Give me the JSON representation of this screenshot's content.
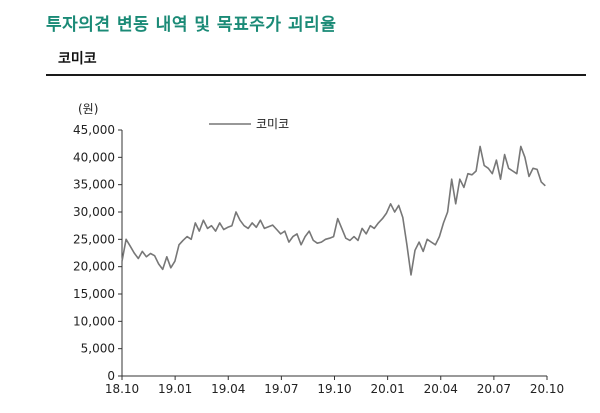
{
  "header": {
    "report_title": "투자의견 변동 내역 및 목표주가 괴리율",
    "chart_title": "코미코"
  },
  "colors": {
    "title_green": "#1a8a76",
    "series_line": "#777777"
  },
  "chart_data": {
    "type": "line",
    "ylabel": "(원)",
    "ylim": [
      0,
      45000
    ],
    "yticks": [
      0,
      5000,
      10000,
      15000,
      20000,
      25000,
      30000,
      35000,
      40000,
      45000
    ],
    "ytick_labels": [
      "0",
      "5,000",
      "10,000",
      "15,000",
      "20,000",
      "25,000",
      "30,000",
      "35,000",
      "40,000",
      "45,000"
    ],
    "xticks": [
      "18.10",
      "19.01",
      "19.04",
      "19.07",
      "19.10",
      "20.01",
      "20.04",
      "20.07",
      "20.10"
    ],
    "grid": false,
    "legend_position": "top-center",
    "series": [
      {
        "name": "코미코",
        "x": [
          "2018-10-01",
          "2018-10-08",
          "2018-10-15",
          "2018-10-22",
          "2018-10-29",
          "2018-11-05",
          "2018-11-12",
          "2018-11-19",
          "2018-11-26",
          "2018-12-03",
          "2018-12-10",
          "2018-12-17",
          "2018-12-24",
          "2018-12-31",
          "2019-01-07",
          "2019-01-14",
          "2019-01-21",
          "2019-01-28",
          "2019-02-04",
          "2019-02-11",
          "2019-02-18",
          "2019-02-25",
          "2019-03-04",
          "2019-03-11",
          "2019-03-18",
          "2019-03-25",
          "2019-04-01",
          "2019-04-08",
          "2019-04-15",
          "2019-04-22",
          "2019-04-29",
          "2019-05-06",
          "2019-05-13",
          "2019-05-20",
          "2019-05-27",
          "2019-06-03",
          "2019-06-10",
          "2019-06-17",
          "2019-06-24",
          "2019-07-01",
          "2019-07-08",
          "2019-07-15",
          "2019-07-22",
          "2019-07-29",
          "2019-08-05",
          "2019-08-12",
          "2019-08-19",
          "2019-08-26",
          "2019-09-02",
          "2019-09-09",
          "2019-09-16",
          "2019-09-23",
          "2019-09-30",
          "2019-10-07",
          "2019-10-14",
          "2019-10-21",
          "2019-10-28",
          "2019-11-04",
          "2019-11-11",
          "2019-11-18",
          "2019-11-25",
          "2019-12-02",
          "2019-12-09",
          "2019-12-16",
          "2019-12-23",
          "2019-12-30",
          "2020-01-06",
          "2020-01-13",
          "2020-01-20",
          "2020-01-27",
          "2020-02-03",
          "2020-02-10",
          "2020-02-17",
          "2020-02-24",
          "2020-03-02",
          "2020-03-09",
          "2020-03-16",
          "2020-03-23",
          "2020-03-30",
          "2020-04-06",
          "2020-04-13",
          "2020-04-20",
          "2020-04-27",
          "2020-05-04",
          "2020-05-11",
          "2020-05-18",
          "2020-05-25",
          "2020-06-01",
          "2020-06-08",
          "2020-06-15",
          "2020-06-22",
          "2020-06-29",
          "2020-07-06",
          "2020-07-13",
          "2020-07-20",
          "2020-07-27",
          "2020-08-03",
          "2020-08-10",
          "2020-08-17",
          "2020-08-24",
          "2020-08-31",
          "2020-09-07",
          "2020-09-14",
          "2020-09-21",
          "2020-09-28"
        ],
        "values": [
          21000,
          25000,
          23800,
          22500,
          21500,
          22800,
          21800,
          22400,
          22000,
          20500,
          19500,
          21800,
          19800,
          21000,
          24000,
          24800,
          25500,
          25000,
          28000,
          26500,
          28500,
          27000,
          27500,
          26500,
          28000,
          26800,
          27200,
          27500,
          30000,
          28500,
          27500,
          27000,
          28000,
          27200,
          28500,
          27000,
          27300,
          27600,
          26800,
          26000,
          26500,
          24500,
          25500,
          26000,
          24000,
          25500,
          26500,
          24800,
          24300,
          24500,
          25000,
          25200,
          25500,
          28800,
          27000,
          25200,
          24800,
          25500,
          24800,
          27000,
          26000,
          27500,
          27000,
          28000,
          28800,
          29800,
          31500,
          30000,
          31200,
          29000,
          24000,
          18500,
          23000,
          24500,
          22800,
          25000,
          24500,
          24000,
          25500,
          28000,
          30000,
          36000,
          31500,
          36000,
          34500,
          37000,
          36800,
          37500,
          42000,
          38500,
          38000,
          37000,
          39500,
          36000,
          40500,
          38000,
          37500,
          37000,
          42000,
          40000,
          36500,
          38000,
          37800,
          35500,
          34800
        ]
      }
    ],
    "legend_label": "코미코"
  }
}
